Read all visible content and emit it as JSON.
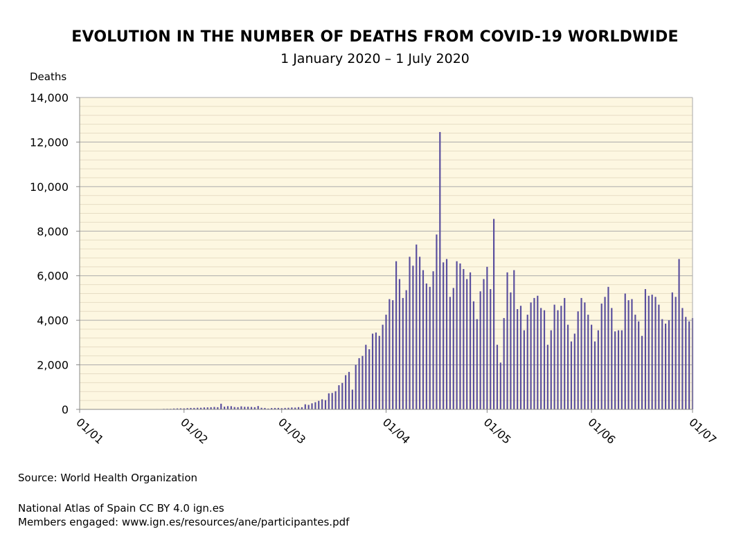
{
  "header": {
    "title": "EVOLUTION IN THE NUMBER OF DEATHS FROM COVID-19 WORLDWIDE",
    "subtitle": "1 January 2020 – 1 July 2020"
  },
  "footer": {
    "source": "Source: World Health Organization",
    "atlas": "National Atlas of Spain CC BY 4.0 ign.es",
    "members": "Members engaged: www.ign.es/resources/ane/participantes.pdf"
  },
  "colors": {
    "bar": "#5a4f9e",
    "plot_background": "#fdf7e1",
    "major_grid": "#a9a9a9",
    "minor_grid": "#e6dcc4",
    "axis": "#888888"
  },
  "chart_data": {
    "type": "bar",
    "title": "EVOLUTION IN THE NUMBER OF DEATHS FROM COVID-19 WORLDWIDE",
    "subtitle": "1 January 2020 – 1 July 2020",
    "ylabel": "Deaths",
    "xlabel": "",
    "ylim": [
      0,
      14000
    ],
    "yticks": [
      0,
      2000,
      4000,
      6000,
      8000,
      10000,
      12000,
      14000
    ],
    "ytick_labels": [
      "0",
      "2,000",
      "4,000",
      "6,000",
      "8,000",
      "10,000",
      "12,000",
      "14,000"
    ],
    "xlim": [
      "2020-01-01",
      "2020-07-01"
    ],
    "xticks": [
      "2020-01-01",
      "2020-02-01",
      "2020-03-01",
      "2020-04-01",
      "2020-05-01",
      "2020-06-01",
      "2020-07-01"
    ],
    "xtick_labels": [
      "01/01",
      "01/02",
      "01/03",
      "01/04",
      "01/05",
      "01/06",
      "01/07"
    ],
    "grid": true,
    "legend": "none",
    "series": [
      {
        "x": [
          "2020-01-01",
          "2020-01-02",
          "2020-01-03",
          "2020-01-04",
          "2020-01-05",
          "2020-01-06",
          "2020-01-07",
          "2020-01-08",
          "2020-01-09",
          "2020-01-10",
          "2020-01-11",
          "2020-01-12",
          "2020-01-13",
          "2020-01-14",
          "2020-01-15",
          "2020-01-16",
          "2020-01-17",
          "2020-01-18",
          "2020-01-19",
          "2020-01-20",
          "2020-01-21",
          "2020-01-22",
          "2020-01-23",
          "2020-01-24",
          "2020-01-25",
          "2020-01-26",
          "2020-01-27",
          "2020-01-28",
          "2020-01-29",
          "2020-01-30",
          "2020-01-31",
          "2020-02-01",
          "2020-02-02",
          "2020-02-03",
          "2020-02-04",
          "2020-02-05",
          "2020-02-06",
          "2020-02-07",
          "2020-02-08",
          "2020-02-09",
          "2020-02-10",
          "2020-02-11",
          "2020-02-12",
          "2020-02-13",
          "2020-02-14",
          "2020-02-15",
          "2020-02-16",
          "2020-02-17",
          "2020-02-18",
          "2020-02-19",
          "2020-02-20",
          "2020-02-21",
          "2020-02-22",
          "2020-02-23",
          "2020-02-24",
          "2020-02-25",
          "2020-02-26",
          "2020-02-27",
          "2020-02-28",
          "2020-02-29",
          "2020-03-01",
          "2020-03-02",
          "2020-03-03",
          "2020-03-04",
          "2020-03-05",
          "2020-03-06",
          "2020-03-07",
          "2020-03-08",
          "2020-03-09",
          "2020-03-10",
          "2020-03-11",
          "2020-03-12",
          "2020-03-13",
          "2020-03-14",
          "2020-03-15",
          "2020-03-16",
          "2020-03-17",
          "2020-03-18",
          "2020-03-19",
          "2020-03-20",
          "2020-03-21",
          "2020-03-22",
          "2020-03-23",
          "2020-03-24",
          "2020-03-25",
          "2020-03-26",
          "2020-03-27",
          "2020-03-28",
          "2020-03-29",
          "2020-03-30",
          "2020-03-31",
          "2020-04-01",
          "2020-04-02",
          "2020-04-03",
          "2020-04-04",
          "2020-04-05",
          "2020-04-06",
          "2020-04-07",
          "2020-04-08",
          "2020-04-09",
          "2020-04-10",
          "2020-04-11",
          "2020-04-12",
          "2020-04-13",
          "2020-04-14",
          "2020-04-15",
          "2020-04-16",
          "2020-04-17",
          "2020-04-18",
          "2020-04-19",
          "2020-04-20",
          "2020-04-21",
          "2020-04-22",
          "2020-04-23",
          "2020-04-24",
          "2020-04-25",
          "2020-04-26",
          "2020-04-27",
          "2020-04-28",
          "2020-04-29",
          "2020-04-30",
          "2020-05-01",
          "2020-05-02",
          "2020-05-03",
          "2020-05-04",
          "2020-05-05",
          "2020-05-06",
          "2020-05-07",
          "2020-05-08",
          "2020-05-09",
          "2020-05-10",
          "2020-05-11",
          "2020-05-12",
          "2020-05-13",
          "2020-05-14",
          "2020-05-15",
          "2020-05-16",
          "2020-05-17",
          "2020-05-18",
          "2020-05-19",
          "2020-05-20",
          "2020-05-21",
          "2020-05-22",
          "2020-05-23",
          "2020-05-24",
          "2020-05-25",
          "2020-05-26",
          "2020-05-27",
          "2020-05-28",
          "2020-05-29",
          "2020-05-30",
          "2020-05-31",
          "2020-06-01",
          "2020-06-02",
          "2020-06-03",
          "2020-06-04",
          "2020-06-05",
          "2020-06-06",
          "2020-06-07",
          "2020-06-08",
          "2020-06-09",
          "2020-06-10",
          "2020-06-11",
          "2020-06-12",
          "2020-06-13",
          "2020-06-14",
          "2020-06-15",
          "2020-06-16",
          "2020-06-17",
          "2020-06-18",
          "2020-06-19",
          "2020-06-20",
          "2020-06-21",
          "2020-06-22",
          "2020-06-23",
          "2020-06-24",
          "2020-06-25",
          "2020-06-26",
          "2020-06-27",
          "2020-06-28",
          "2020-06-29",
          "2020-06-30",
          "2020-07-01"
        ],
        "values": [
          0,
          0,
          0,
          0,
          0,
          0,
          0,
          0,
          0,
          0,
          1,
          0,
          0,
          1,
          0,
          0,
          2,
          1,
          1,
          3,
          6,
          9,
          8,
          16,
          15,
          24,
          26,
          26,
          38,
          43,
          46,
          45,
          57,
          64,
          66,
          73,
          73,
          86,
          89,
          97,
          108,
          97,
          254,
          121,
          143,
          143,
          105,
          98,
          136,
          114,
          118,
          109,
          97,
          150,
          71,
          64,
          37,
          58,
          64,
          66,
          53,
          66,
          72,
          84,
          80,
          100,
          96,
          228,
          202,
          272,
          322,
          382,
          451,
          416,
          721,
          738,
          817,
          1084,
          1187,
          1536,
          1681,
          885,
          2000,
          2300,
          2400,
          2900,
          2700,
          3400,
          3450,
          3300,
          3800,
          4250,
          4950,
          4900,
          6650,
          5850,
          5000,
          5350,
          6850,
          6450,
          7400,
          6850,
          6250,
          5650,
          5500,
          6200,
          7850,
          12450,
          6600,
          6750,
          5050,
          5450,
          6650,
          6550,
          6300,
          5850,
          6150,
          4850,
          4050,
          5300,
          5850,
          6400,
          5400,
          8550,
          2900,
          2100,
          4100,
          6150,
          5250,
          6250,
          4500,
          4650,
          3550,
          4250,
          4800,
          5000,
          5100,
          4550,
          4450,
          2900,
          3550,
          4700,
          4450,
          4650,
          5000,
          3800,
          3050,
          3400,
          4400,
          5000,
          4800,
          4250,
          3800,
          3050,
          3550,
          4750,
          5050,
          5500,
          4550,
          3500,
          3550,
          3550,
          5200,
          4900,
          4950,
          4250,
          3950,
          3300,
          5400,
          5100,
          5150,
          5050,
          4700,
          4050,
          3850,
          4000,
          5250,
          5050,
          6750,
          4550,
          4150,
          3950,
          4100
        ]
      }
    ]
  }
}
